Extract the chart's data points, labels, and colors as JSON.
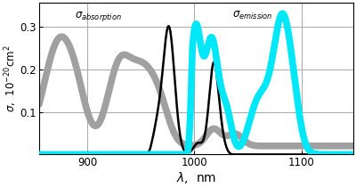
{
  "title": "",
  "xlabel": "$\\lambda$,  nm",
  "ylabel": "$\\sigma$,  $10^{-20}$cm$^2$",
  "xlim": [
    855,
    1148
  ],
  "ylim": [
    0,
    0.355
  ],
  "yticks": [
    0.1,
    0.2,
    0.3
  ],
  "xticks": [
    900,
    1000,
    1100
  ],
  "bg_color": "#ffffff",
  "grid_color": "#aaaaaa",
  "absorption_color": "#000000",
  "emission_color": "#00e8f8",
  "gray_color": "#a0a0a0",
  "linewidth_black": 1.8,
  "linewidth_cyan": 5.5,
  "linewidth_gray": 5.5
}
